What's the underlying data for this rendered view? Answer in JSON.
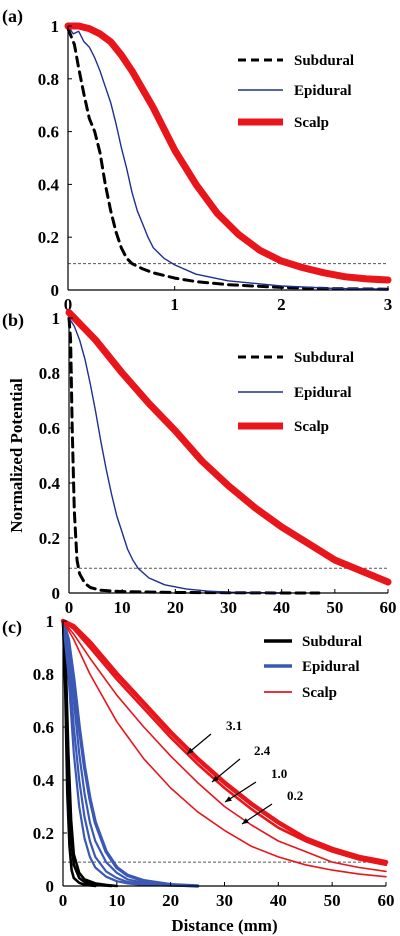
{
  "chart_data": [
    {
      "panel": "(a)",
      "type": "line",
      "xlim": [
        0,
        3
      ],
      "ylim": [
        0,
        1
      ],
      "xticks": [
        "0",
        "1",
        "2",
        "3"
      ],
      "yticks": [
        "0",
        "0.2",
        "0.4",
        "0.6",
        "0.8",
        "1"
      ],
      "xlabel": "",
      "ylabel": "",
      "grid": false,
      "legend_position": "top-right",
      "threshold": 0.1,
      "series": [
        {
          "name": "Subdural",
          "color": "#000000",
          "style": "dashed",
          "x": [
            0.0,
            0.03,
            0.06,
            0.1,
            0.15,
            0.2,
            0.25,
            0.3,
            0.35,
            0.4,
            0.45,
            0.5,
            0.55,
            0.6,
            0.7,
            0.8,
            1.0,
            1.2,
            1.5,
            2.0,
            2.5,
            3.0
          ],
          "y": [
            0.99,
            0.96,
            0.93,
            0.84,
            0.74,
            0.65,
            0.6,
            0.52,
            0.4,
            0.3,
            0.22,
            0.16,
            0.12,
            0.1,
            0.08,
            0.065,
            0.045,
            0.032,
            0.02,
            0.01,
            0.005,
            0.003
          ]
        },
        {
          "name": "Epidural",
          "color": "#1f2f8f",
          "style": "solid",
          "x": [
            0.0,
            0.05,
            0.1,
            0.15,
            0.2,
            0.25,
            0.3,
            0.35,
            0.4,
            0.45,
            0.5,
            0.55,
            0.6,
            0.65,
            0.7,
            0.75,
            0.8,
            0.9,
            1.0,
            1.2,
            1.5,
            2.0,
            2.5,
            3.0
          ],
          "y": [
            1.0,
            0.97,
            0.98,
            0.94,
            0.92,
            0.88,
            0.83,
            0.77,
            0.71,
            0.63,
            0.54,
            0.46,
            0.37,
            0.3,
            0.25,
            0.2,
            0.16,
            0.12,
            0.095,
            0.06,
            0.035,
            0.015,
            0.006,
            0.003
          ]
        },
        {
          "name": "Scalp",
          "color": "#e8151b",
          "style": "thick",
          "x": [
            0.0,
            0.1,
            0.2,
            0.3,
            0.4,
            0.5,
            0.6,
            0.7,
            0.8,
            0.9,
            1.0,
            1.2,
            1.4,
            1.6,
            1.8,
            2.0,
            2.2,
            2.4,
            2.6,
            2.8,
            3.0
          ],
          "y": [
            1.0,
            1.0,
            0.99,
            0.97,
            0.94,
            0.89,
            0.83,
            0.76,
            0.69,
            0.61,
            0.53,
            0.4,
            0.29,
            0.21,
            0.15,
            0.11,
            0.085,
            0.065,
            0.05,
            0.042,
            0.038
          ]
        }
      ]
    },
    {
      "panel": "(b)",
      "type": "line",
      "xlim": [
        0,
        60
      ],
      "ylim": [
        0,
        1
      ],
      "xticks": [
        "0",
        "10",
        "20",
        "30",
        "40",
        "50",
        "60"
      ],
      "yticks": [
        "0",
        "0.2",
        "0.4",
        "0.6",
        "0.8",
        "1"
      ],
      "xlabel": "",
      "ylabel": "Normalized Potential",
      "grid": false,
      "legend_position": "top-right",
      "threshold": 0.09,
      "series": [
        {
          "name": "Subdural",
          "color": "#000000",
          "style": "dashed",
          "x": [
            0.0,
            0.3,
            0.6,
            1.0,
            1.5,
            2.0,
            3.0,
            4.0,
            6.0,
            10.0,
            20.0,
            30.0,
            40.0,
            47.0
          ],
          "y": [
            1.0,
            0.92,
            0.6,
            0.3,
            0.12,
            0.07,
            0.035,
            0.02,
            0.01,
            0.005,
            0.002,
            0.001,
            0.0,
            0.0
          ]
        },
        {
          "name": "Epidural",
          "color": "#1f2f8f",
          "style": "solid",
          "x": [
            0.0,
            1.0,
            2.0,
            3.0,
            4.0,
            5.0,
            6.0,
            7.0,
            8.0,
            9.0,
            10.0,
            11.0,
            12.0,
            13.0,
            15.0,
            18.0,
            22.0,
            26.0,
            30.0,
            35.0,
            40.0
          ],
          "y": [
            1.0,
            0.97,
            0.92,
            0.85,
            0.76,
            0.66,
            0.55,
            0.45,
            0.36,
            0.28,
            0.22,
            0.16,
            0.12,
            0.09,
            0.055,
            0.03,
            0.015,
            0.007,
            0.003,
            0.001,
            0.0
          ]
        },
        {
          "name": "Scalp",
          "color": "#e8151b",
          "style": "thick",
          "x": [
            0,
            5,
            10,
            15,
            20,
            25,
            30,
            35,
            40,
            45,
            50,
            55,
            60
          ],
          "y": [
            1.02,
            0.92,
            0.8,
            0.69,
            0.59,
            0.48,
            0.39,
            0.31,
            0.24,
            0.18,
            0.12,
            0.08,
            0.04
          ]
        }
      ]
    },
    {
      "panel": "(c)",
      "type": "line",
      "xlim": [
        0,
        60
      ],
      "ylim": [
        0,
        1
      ],
      "xticks": [
        "0",
        "10",
        "20",
        "30",
        "40",
        "50",
        "60"
      ],
      "yticks": [
        "0",
        "0.2",
        "0.4",
        "0.6",
        "0.8",
        "1"
      ],
      "xlabel": "Distance (mm)",
      "ylabel": "",
      "grid": false,
      "legend_position": "top-right",
      "threshold": 0.09,
      "annotations": [
        "3.1",
        "2.4",
        "1.0",
        "0.2"
      ],
      "series": [
        {
          "name": "Subdural",
          "color": "#000000",
          "style": "thick-group",
          "curves": [
            {
              "x": [
                0.0,
                0.5,
                1.0,
                1.5,
                2.0,
                3.0,
                4.0,
                6.0,
                8.0,
                10.0
              ],
              "y": [
                1.0,
                0.85,
                0.5,
                0.25,
                0.12,
                0.05,
                0.025,
                0.01,
                0.004,
                0.0
              ]
            },
            {
              "x": [
                0.0,
                0.5,
                1.0,
                1.5,
                2.0,
                3.0,
                4.0,
                5.0,
                7.0,
                9.0
              ],
              "y": [
                1.0,
                0.8,
                0.4,
                0.18,
                0.08,
                0.03,
                0.015,
                0.008,
                0.003,
                0.0
              ]
            },
            {
              "x": [
                0.0,
                0.4,
                0.8,
                1.2,
                1.6,
                2.0,
                3.0,
                4.0,
                6.0
              ],
              "y": [
                1.0,
                0.75,
                0.35,
                0.15,
                0.06,
                0.03,
                0.012,
                0.005,
                0.0
              ]
            }
          ]
        },
        {
          "name": "Epidural",
          "color": "#3a58b4",
          "style": "group",
          "curves": [
            {
              "x": [
                0.0,
                1.0,
                2.0,
                3.0,
                4.0,
                5.0,
                6.0,
                8.0,
                10.0,
                12.0,
                15.0,
                20.0,
                25.0
              ],
              "y": [
                1.0,
                0.93,
                0.78,
                0.6,
                0.45,
                0.33,
                0.24,
                0.13,
                0.07,
                0.04,
                0.02,
                0.005,
                0.0
              ]
            },
            {
              "x": [
                0.0,
                1.0,
                2.0,
                3.0,
                4.0,
                5.0,
                6.0,
                8.0,
                10.0,
                12.0,
                15.0,
                20.0,
                25.0
              ],
              "y": [
                1.0,
                0.9,
                0.7,
                0.5,
                0.35,
                0.24,
                0.17,
                0.09,
                0.05,
                0.025,
                0.012,
                0.003,
                0.0
              ]
            },
            {
              "x": [
                0.0,
                1.0,
                2.0,
                3.0,
                4.0,
                5.0,
                6.0,
                8.0,
                10.0,
                12.0,
                15.0,
                20.0,
                25.0
              ],
              "y": [
                1.0,
                0.86,
                0.6,
                0.4,
                0.26,
                0.17,
                0.11,
                0.055,
                0.03,
                0.015,
                0.007,
                0.002,
                0.0
              ]
            },
            {
              "x": [
                0.0,
                1.0,
                2.0,
                3.0,
                4.0,
                5.0,
                6.0,
                8.0,
                10.0,
                12.0,
                15.0,
                20.0,
                25.0
              ],
              "y": [
                1.0,
                0.8,
                0.5,
                0.3,
                0.18,
                0.11,
                0.07,
                0.035,
                0.018,
                0.01,
                0.004,
                0.001,
                0.0
              ]
            }
          ]
        },
        {
          "name": "Scalp",
          "color": "#e8151b",
          "style": "group",
          "curves": [
            {
              "x": [
                0,
                2,
                5,
                10,
                15,
                20,
                25,
                30,
                35,
                40,
                45,
                50,
                55,
                60
              ],
              "y": [
                1.0,
                0.98,
                0.92,
                0.8,
                0.69,
                0.58,
                0.48,
                0.39,
                0.31,
                0.24,
                0.18,
                0.14,
                0.11,
                0.09
              ]
            },
            {
              "x": [
                0,
                2,
                5,
                10,
                15,
                20,
                25,
                30,
                35,
                40,
                45,
                50,
                55,
                60
              ],
              "y": [
                1.0,
                0.97,
                0.9,
                0.78,
                0.67,
                0.56,
                0.46,
                0.37,
                0.29,
                0.22,
                0.17,
                0.13,
                0.1,
                0.08
              ]
            },
            {
              "x": [
                0,
                2,
                5,
                10,
                15,
                20,
                25,
                30,
                35,
                40,
                45,
                50,
                55,
                60
              ],
              "y": [
                1.0,
                0.95,
                0.86,
                0.72,
                0.6,
                0.49,
                0.39,
                0.3,
                0.23,
                0.17,
                0.13,
                0.09,
                0.07,
                0.055
              ]
            },
            {
              "x": [
                0,
                2,
                5,
                10,
                15,
                20,
                25,
                30,
                35,
                40,
                45,
                50,
                55,
                60
              ],
              "y": [
                1.0,
                0.93,
                0.8,
                0.62,
                0.48,
                0.37,
                0.28,
                0.21,
                0.15,
                0.11,
                0.08,
                0.06,
                0.045,
                0.035
              ]
            }
          ]
        }
      ]
    }
  ]
}
